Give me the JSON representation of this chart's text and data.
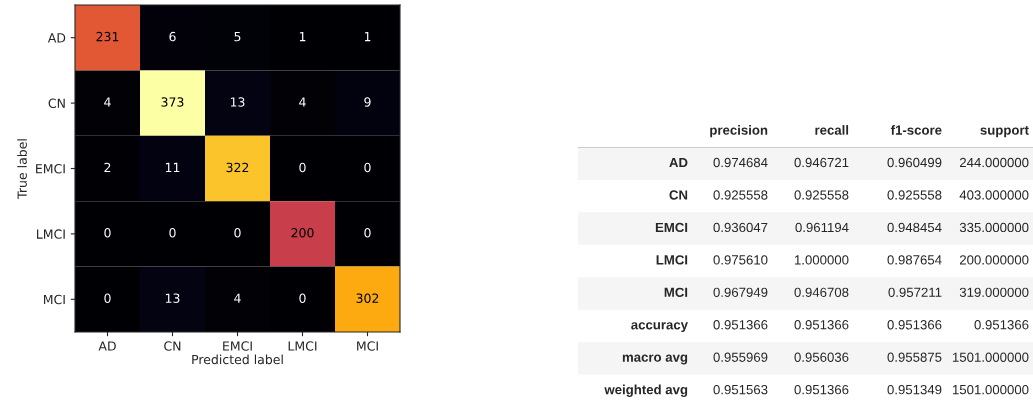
{
  "chart_data": [
    {
      "type": "heatmap",
      "xlabel": "Predicted label",
      "ylabel": "True label",
      "data_labels": true,
      "categories": [
        "AD",
        "CN",
        "EMCI",
        "LMCI",
        "MCI"
      ],
      "y_categories": [
        "AD",
        "CN",
        "EMCI",
        "LMCI",
        "MCI"
      ],
      "cells": [
        [
          231,
          6,
          5,
          1,
          1
        ],
        [
          4,
          373,
          13,
          4,
          9
        ],
        [
          2,
          11,
          322,
          0,
          0
        ],
        [
          0,
          0,
          0,
          200,
          0
        ],
        [
          0,
          13,
          4,
          0,
          302
        ]
      ]
    },
    {
      "type": "other",
      "data_labels": true,
      "categories": [
        "precision",
        "recall",
        "f1-score",
        "support"
      ],
      "y_categories": [
        "AD",
        "CN",
        "EMCI",
        "LMCI",
        "MCI",
        "accuracy",
        "macro avg",
        "weighted avg"
      ],
      "cell_labels": [
        [
          "0.974684",
          "0.946721",
          "0.960499",
          "244.000000"
        ],
        [
          "0.925558",
          "0.925558",
          "0.925558",
          "403.000000"
        ],
        [
          "0.936047",
          "0.961194",
          "0.948454",
          "335.000000"
        ],
        [
          "0.975610",
          "1.000000",
          "0.987654",
          "200.000000"
        ],
        [
          "0.967949",
          "0.946708",
          "0.957211",
          "319.000000"
        ],
        [
          "0.951366",
          "0.951366",
          "0.951366",
          "0.951366"
        ],
        [
          "0.955969",
          "0.956036",
          "0.955875",
          "1501.000000"
        ],
        [
          "0.951563",
          "0.951366",
          "0.951349",
          "1501.000000"
        ]
      ]
    }
  ]
}
